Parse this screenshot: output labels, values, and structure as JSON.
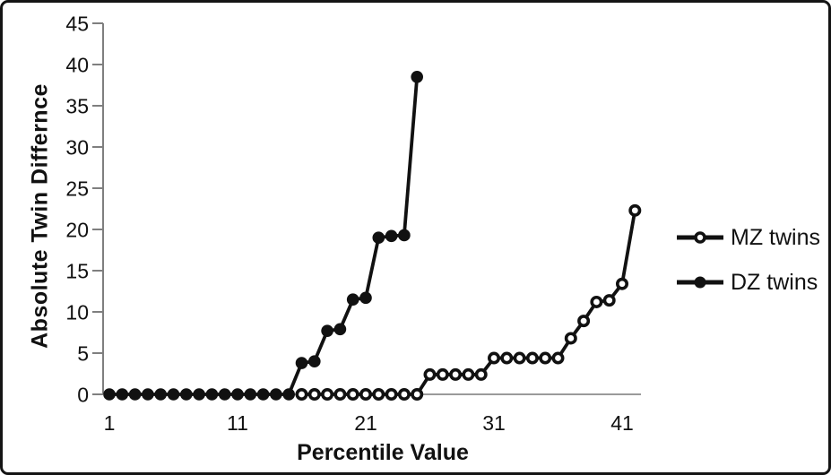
{
  "figure": {
    "ylabel": "Absolute Twin Differnce",
    "xlabel": "Percentile Value"
  },
  "legend": {
    "items": [
      {
        "label": "MZ twins",
        "marker": "open-circle"
      },
      {
        "label": "DZ twins",
        "marker": "filled-circle"
      }
    ]
  },
  "colors": {
    "series": "#111111",
    "axis": "#7f7f7f",
    "zero_line": "#9a9a9a",
    "text": "#111111",
    "background": "#ffffff",
    "border": "#141414"
  },
  "chart_data": {
    "type": "line",
    "title": "",
    "xlabel": "Percentile Value",
    "ylabel": "Absolute Twin Differnce",
    "x_ticks": [
      1,
      11,
      21,
      31,
      41
    ],
    "y_ticks": [
      0,
      5,
      10,
      15,
      20,
      25,
      30,
      35,
      40,
      45
    ],
    "ylim": [
      0,
      45
    ],
    "xlim": [
      1,
      43
    ],
    "grid": false,
    "legend_position": "right",
    "series": [
      {
        "name": "MZ twins",
        "marker": "open-circle",
        "points": [
          [
            16,
            0
          ],
          [
            17,
            0
          ],
          [
            18,
            0
          ],
          [
            19,
            0
          ],
          [
            20,
            0
          ],
          [
            21,
            0
          ],
          [
            22,
            0
          ],
          [
            23,
            0
          ],
          [
            24,
            0
          ],
          [
            25,
            0
          ],
          [
            26,
            2.4
          ],
          [
            27,
            2.4
          ],
          [
            28,
            2.4
          ],
          [
            29,
            2.4
          ],
          [
            30,
            2.4
          ],
          [
            31,
            4.4
          ],
          [
            32,
            4.4
          ],
          [
            33,
            4.4
          ],
          [
            34,
            4.4
          ],
          [
            35,
            4.4
          ],
          [
            36,
            4.4
          ],
          [
            37,
            6.8
          ],
          [
            38,
            8.9
          ],
          [
            39,
            11.2
          ],
          [
            40,
            11.4
          ],
          [
            41,
            13.4
          ],
          [
            42,
            22.3
          ]
        ]
      },
      {
        "name": "DZ twins",
        "marker": "filled-circle",
        "points": [
          [
            1,
            0
          ],
          [
            2,
            0
          ],
          [
            3,
            0
          ],
          [
            4,
            0
          ],
          [
            5,
            0
          ],
          [
            6,
            0
          ],
          [
            7,
            0
          ],
          [
            8,
            0
          ],
          [
            9,
            0
          ],
          [
            10,
            0
          ],
          [
            11,
            0
          ],
          [
            12,
            0
          ],
          [
            13,
            0
          ],
          [
            14,
            0
          ],
          [
            15,
            0
          ],
          [
            16,
            3.8
          ],
          [
            17,
            4.0
          ],
          [
            18,
            7.7
          ],
          [
            19,
            7.9
          ],
          [
            20,
            11.5
          ],
          [
            21,
            11.7
          ],
          [
            22,
            19.0
          ],
          [
            23,
            19.2
          ],
          [
            24,
            19.3
          ],
          [
            25,
            38.5
          ]
        ]
      }
    ]
  }
}
